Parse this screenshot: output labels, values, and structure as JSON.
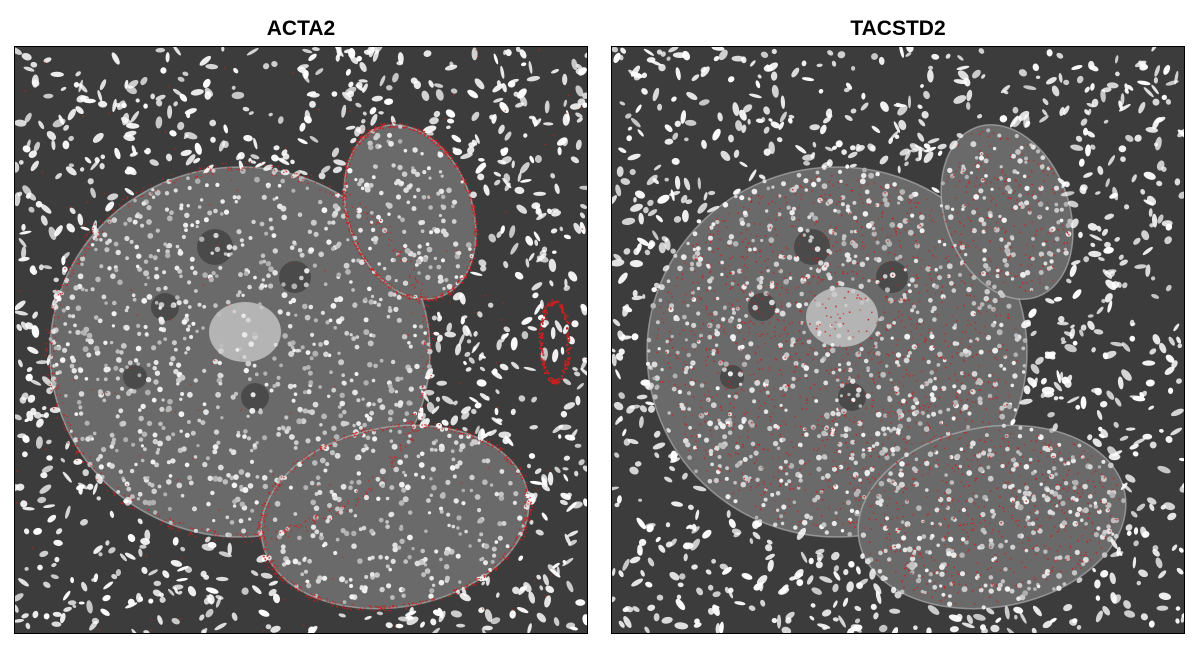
{
  "panels": [
    {
      "title": "ACTA2",
      "marker_color": "#cc1f1f",
      "background_tone": "#3c3c3c",
      "nuclei_color": "#e8e8e8",
      "image": "fluorescence-tissue-section"
    },
    {
      "title": "TACSTD2",
      "marker_color": "#cc1f1f",
      "background_tone": "#3c3c3c",
      "nuclei_color": "#e8e8e8",
      "image": "fluorescence-tissue-section"
    }
  ]
}
